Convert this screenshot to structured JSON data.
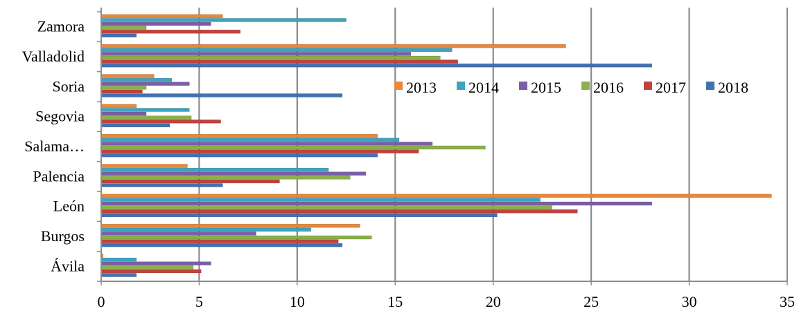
{
  "chart_data": {
    "type": "bar",
    "orientation": "horizontal",
    "categories": [
      "Ávila",
      "Burgos",
      "León",
      "Palencia",
      "Salama…",
      "Segovia",
      "Soria",
      "Valladolid",
      "Zamora"
    ],
    "series": [
      {
        "name": "2013",
        "color": "#e9883a",
        "values": [
          0.1,
          13.2,
          34.2,
          4.4,
          14.1,
          1.8,
          2.7,
          23.7,
          6.2
        ]
      },
      {
        "name": "2014",
        "color": "#3fa3bd",
        "values": [
          1.8,
          10.7,
          22.4,
          11.6,
          15.2,
          4.5,
          3.6,
          17.9,
          12.5
        ]
      },
      {
        "name": "2015",
        "color": "#7a5fa6",
        "values": [
          5.6,
          7.9,
          28.1,
          13.5,
          16.9,
          2.3,
          4.5,
          15.8,
          5.6
        ]
      },
      {
        "name": "2016",
        "color": "#8cb04a",
        "values": [
          4.7,
          13.8,
          23.0,
          12.7,
          19.6,
          4.6,
          2.3,
          17.3,
          2.3
        ]
      },
      {
        "name": "2017",
        "color": "#c0423d",
        "values": [
          5.1,
          12.1,
          24.3,
          9.1,
          16.2,
          6.1,
          2.1,
          18.2,
          7.1
        ]
      },
      {
        "name": "2018",
        "color": "#4271b0",
        "values": [
          1.8,
          12.3,
          20.2,
          6.2,
          14.1,
          3.5,
          12.3,
          28.1,
          1.8
        ]
      }
    ],
    "xlim": [
      0,
      35
    ],
    "x_ticks": [
      0,
      5,
      10,
      15,
      20,
      25,
      30,
      35
    ],
    "grid": "vertical",
    "legend_placement": "upper-right"
  }
}
